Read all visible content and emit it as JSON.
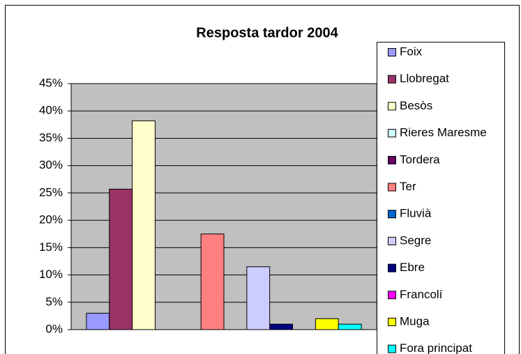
{
  "chart_data": {
    "type": "bar",
    "title": "Resposta tardor 2004",
    "categories": [
      null
    ],
    "series": [
      {
        "name": "Foix",
        "color": "#9999ff",
        "values": [
          3
        ]
      },
      {
        "name": "Llobregat",
        "color": "#993366",
        "values": [
          25.7
        ]
      },
      {
        "name": "Besòs",
        "color": "#ffffcc",
        "values": [
          38.2
        ]
      },
      {
        "name": "Rieres Maresme",
        "color": "#ccffff",
        "values": [
          0
        ]
      },
      {
        "name": "Tordera",
        "color": "#660066",
        "values": [
          0
        ]
      },
      {
        "name": "Ter",
        "color": "#ff8080",
        "values": [
          17.5
        ]
      },
      {
        "name": "Fluvià",
        "color": "#0066cc",
        "values": [
          0
        ]
      },
      {
        "name": "Segre",
        "color": "#ccccff",
        "values": [
          11.5
        ]
      },
      {
        "name": "Ebre",
        "color": "#000080",
        "values": [
          1
        ]
      },
      {
        "name": "Francolí",
        "color": "#ff00ff",
        "values": [
          0
        ]
      },
      {
        "name": "Muga",
        "color": "#ffff00",
        "values": [
          2
        ]
      },
      {
        "name": "Fora principat",
        "color": "#00ffff",
        "values": [
          1
        ]
      }
    ],
    "ylim": [
      0,
      45
    ],
    "yticks": [
      {
        "value": 0,
        "label": "0%"
      },
      {
        "value": 5,
        "label": "5%"
      },
      {
        "value": 10,
        "label": "10%"
      },
      {
        "value": 15,
        "label": "15%"
      },
      {
        "value": 20,
        "label": "20%"
      },
      {
        "value": 25,
        "label": "25%"
      },
      {
        "value": 30,
        "label": "30%"
      },
      {
        "value": 35,
        "label": "35%"
      },
      {
        "value": 40,
        "label": "40%"
      },
      {
        "value": 45,
        "label": "45%"
      }
    ],
    "grid": true,
    "legend": "right"
  }
}
